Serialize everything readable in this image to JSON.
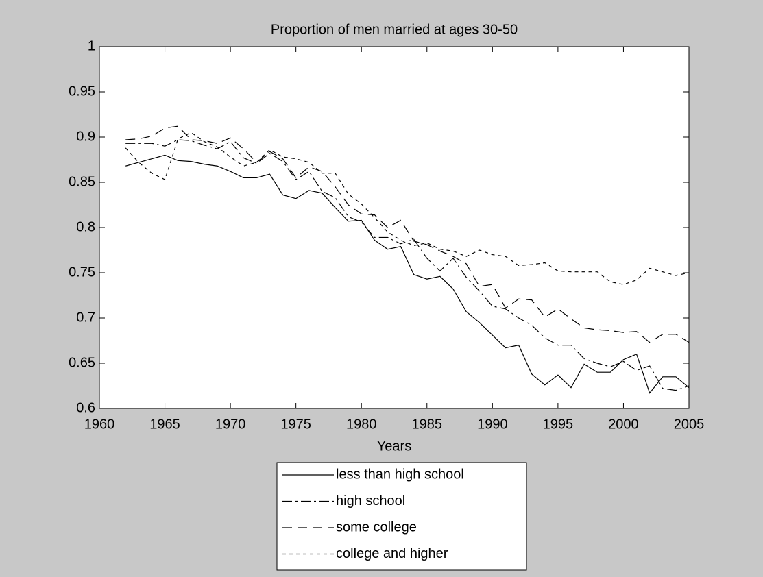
{
  "chart_data": {
    "type": "line",
    "title": "Proportion of men married at ages 30-50",
    "x_label": "Years",
    "x": [
      1962,
      1963,
      1964,
      1965,
      1966,
      1967,
      1968,
      1969,
      1970,
      1971,
      1972,
      1973,
      1974,
      1975,
      1976,
      1977,
      1978,
      1979,
      1980,
      1981,
      1982,
      1983,
      1984,
      1985,
      1986,
      1987,
      1988,
      1989,
      1990,
      1991,
      1992,
      1993,
      1994,
      1995,
      1996,
      1997,
      1998,
      1999,
      2000,
      2001,
      2002,
      2003,
      2004,
      2005
    ],
    "series": [
      {
        "name": "less than high school",
        "color": "#000000",
        "line_style": "-",
        "values": [
          0.868,
          0.872,
          0.876,
          0.88,
          0.874,
          0.873,
          0.87,
          0.868,
          0.862,
          0.855,
          0.855,
          0.859,
          0.836,
          0.832,
          0.841,
          0.838,
          0.822,
          0.807,
          0.808,
          0.786,
          0.776,
          0.779,
          0.748,
          0.743,
          0.746,
          0.732,
          0.707,
          0.695,
          0.681,
          0.667,
          0.67,
          0.638,
          0.626,
          0.637,
          0.623,
          0.649,
          0.64,
          0.64,
          0.654,
          0.66,
          0.617,
          0.635,
          0.635,
          0.623
        ]
      },
      {
        "name": "high school",
        "color": "#000000",
        "line_style": "-.",
        "values": [
          0.893,
          0.893,
          0.893,
          0.89,
          0.897,
          0.896,
          0.891,
          0.887,
          0.895,
          0.877,
          0.871,
          0.882,
          0.873,
          0.853,
          0.862,
          0.84,
          0.833,
          0.812,
          0.806,
          0.789,
          0.789,
          0.782,
          0.787,
          0.766,
          0.752,
          0.766,
          0.745,
          0.73,
          0.713,
          0.71,
          0.7,
          0.692,
          0.678,
          0.67,
          0.67,
          0.655,
          0.65,
          0.646,
          0.652,
          0.642,
          0.647,
          0.622,
          0.62,
          0.625
        ]
      },
      {
        "name": "some college",
        "color": "#000000",
        "line_style": "--",
        "values": [
          0.897,
          0.898,
          0.901,
          0.91,
          0.912,
          0.897,
          0.896,
          0.893,
          0.899,
          0.887,
          0.872,
          0.884,
          0.876,
          0.855,
          0.867,
          0.862,
          0.845,
          0.825,
          0.815,
          0.814,
          0.8,
          0.808,
          0.785,
          0.781,
          0.774,
          0.768,
          0.76,
          0.735,
          0.737,
          0.711,
          0.721,
          0.72,
          0.701,
          0.71,
          0.699,
          0.689,
          0.687,
          0.686,
          0.684,
          0.685,
          0.673,
          0.682,
          0.682,
          0.673
        ]
      },
      {
        "name": "college and higher",
        "color": "#000000",
        "line_style": ":",
        "values": [
          0.888,
          0.872,
          0.86,
          0.853,
          0.898,
          0.905,
          0.895,
          0.889,
          0.878,
          0.868,
          0.872,
          0.886,
          0.878,
          0.876,
          0.872,
          0.86,
          0.86,
          0.837,
          0.826,
          0.811,
          0.795,
          0.786,
          0.78,
          0.783,
          0.776,
          0.774,
          0.768,
          0.775,
          0.77,
          0.768,
          0.758,
          0.759,
          0.761,
          0.752,
          0.751,
          0.751,
          0.751,
          0.74,
          0.737,
          0.742,
          0.755,
          0.751,
          0.747,
          0.75
        ]
      }
    ],
    "xlim": [
      1960,
      2005
    ],
    "xticks": [
      1960,
      1965,
      1970,
      1975,
      1980,
      1985,
      1990,
      1995,
      2000,
      2005
    ],
    "ylim": [
      0.6,
      1
    ],
    "yticks": [
      0.6,
      0.65,
      0.7,
      0.75,
      0.8,
      0.85,
      0.9,
      0.95,
      1
    ],
    "grid": false,
    "legend": "outside-bottom"
  }
}
